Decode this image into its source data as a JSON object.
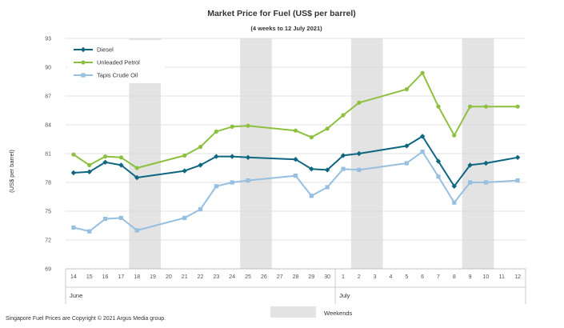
{
  "chart_data": {
    "type": "line",
    "title": "Market Price for Fuel (US$ per barrel)",
    "subtitle": "(4 weeks to 12 July 2021)",
    "ylabel": "(US$ per barrel)",
    "xlabel": "",
    "ylim": [
      69,
      93
    ],
    "yticks": [
      69,
      72,
      75,
      78,
      81,
      84,
      87,
      90,
      93
    ],
    "grid": true,
    "legend_position": "top-left",
    "x_labels": [
      "14",
      "15",
      "16",
      "17",
      "18",
      "19",
      "20",
      "21",
      "22",
      "23",
      "24",
      "25",
      "26",
      "27",
      "28",
      "29",
      "30",
      "1",
      "2",
      "3",
      "4",
      "5",
      "6",
      "7",
      "8",
      "9",
      "10",
      "11",
      "12"
    ],
    "months": [
      {
        "label": "June",
        "start_index": 0
      },
      {
        "label": "July",
        "start_index": 17
      }
    ],
    "weekends": [
      [
        4,
        5
      ],
      [
        11,
        12
      ],
      [
        18,
        19
      ],
      [
        25,
        26
      ]
    ],
    "weekends_label": "Weekends",
    "series": [
      {
        "name": "Diesel",
        "color": "#0e6680",
        "marker": "diamond",
        "x": [
          0,
          1,
          2,
          3,
          4,
          7,
          8,
          9,
          10,
          11,
          14,
          15,
          16,
          17,
          18,
          21,
          22,
          23,
          24,
          25,
          26,
          28
        ],
        "values": [
          79.0,
          79.1,
          80.1,
          79.8,
          78.5,
          79.2,
          79.8,
          80.7,
          80.7,
          80.6,
          80.4,
          79.4,
          79.3,
          80.8,
          81.0,
          81.8,
          82.8,
          80.2,
          77.6,
          79.8,
          80.0,
          80.6
        ]
      },
      {
        "name": "Unleaded Petrol",
        "color": "#8dc03f",
        "marker": "circle",
        "x": [
          0,
          1,
          2,
          3,
          4,
          7,
          8,
          9,
          10,
          11,
          14,
          15,
          16,
          17,
          18,
          21,
          22,
          23,
          24,
          25,
          26,
          28
        ],
        "values": [
          80.9,
          79.8,
          80.7,
          80.6,
          79.5,
          80.8,
          81.7,
          83.3,
          83.8,
          83.9,
          83.4,
          82.7,
          83.6,
          85.0,
          86.3,
          87.7,
          89.4,
          85.9,
          82.9,
          85.9,
          85.9,
          85.9
        ]
      },
      {
        "name": "Tapis Crude Oil",
        "color": "#96bfe0",
        "marker": "square",
        "x": [
          0,
          1,
          2,
          3,
          4,
          7,
          8,
          9,
          10,
          11,
          14,
          15,
          16,
          17,
          18,
          21,
          22,
          23,
          24,
          25,
          26,
          28
        ],
        "values": [
          73.3,
          72.9,
          74.2,
          74.3,
          73.0,
          74.3,
          75.2,
          77.6,
          78.0,
          78.2,
          78.7,
          76.6,
          77.5,
          79.4,
          79.3,
          80.0,
          81.2,
          78.6,
          75.9,
          78.0,
          78.0,
          78.2
        ]
      }
    ]
  },
  "footer": {
    "copyright": "Singapore Fuel Prices are Copyright © 2021 Argus Media group."
  },
  "colors": {
    "weekend_shade": "#e3e3e3",
    "grid": "#d9d9d9"
  }
}
